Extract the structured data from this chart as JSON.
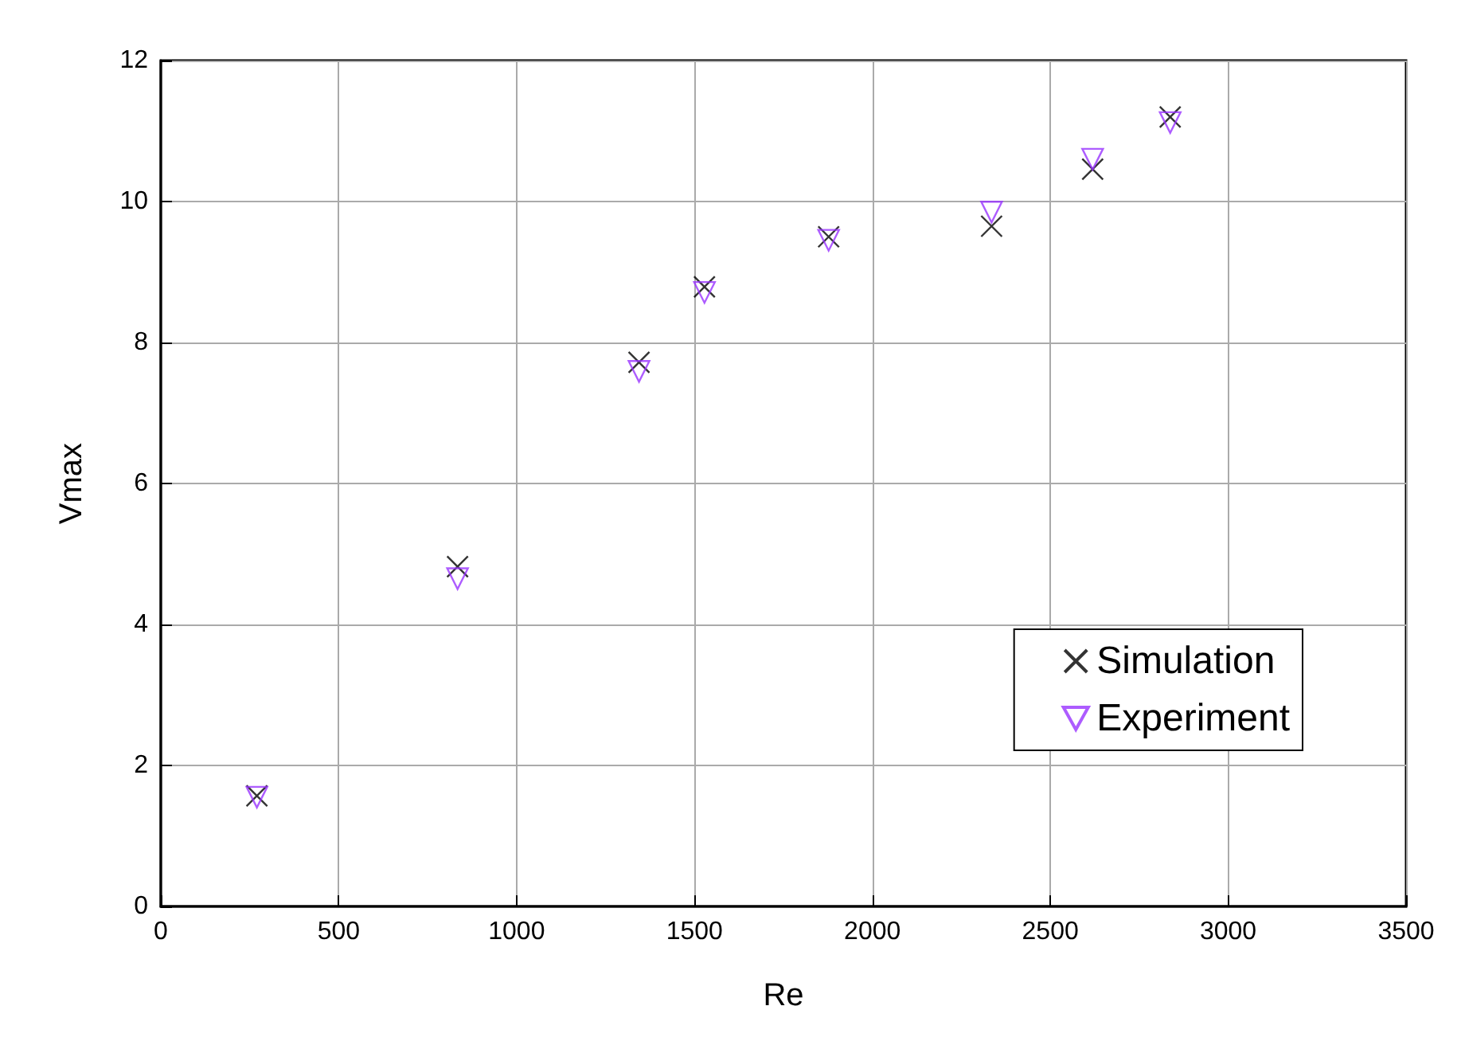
{
  "chart_data": {
    "type": "scatter",
    "xlabel": "Re",
    "ylabel": "Vmax",
    "xlim": [
      0,
      3500
    ],
    "xticks": [
      0,
      500,
      1000,
      1500,
      2000,
      2500,
      3000,
      3500
    ],
    "ylim": [
      0,
      12
    ],
    "yticks": [
      0,
      2,
      4,
      6,
      8,
      10,
      12
    ],
    "grid": true,
    "legend": "bottom right",
    "x": [
      270,
      834,
      1344,
      1528,
      1877,
      2335,
      2619,
      2837
    ],
    "series": [
      {
        "name": "Simulation",
        "color": "#000000",
        "marker": "cross",
        "values": [
          1.57,
          4.82,
          7.72,
          8.79,
          9.5,
          9.65,
          10.46,
          11.2
        ]
      },
      {
        "name": "Experiment",
        "color": "#9933ff",
        "marker": "triangle",
        "values": [
          1.55,
          4.65,
          7.59,
          8.71,
          9.45,
          9.85,
          10.6,
          11.12
        ]
      }
    ]
  }
}
